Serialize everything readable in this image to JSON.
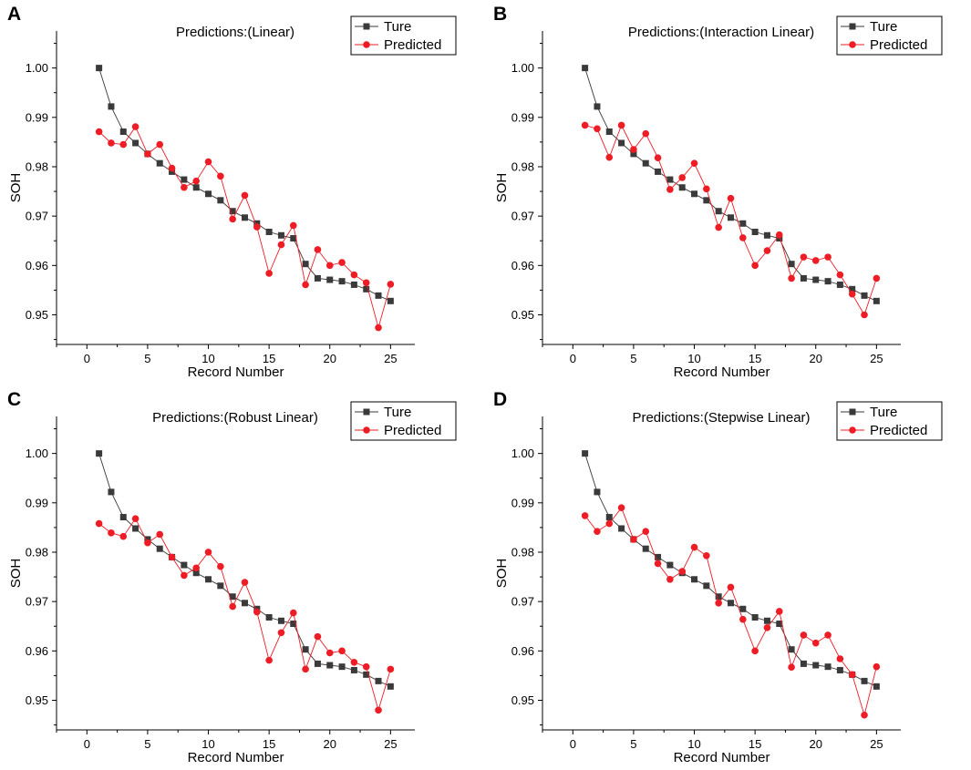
{
  "chart_data": [
    {
      "panel": "A",
      "type": "line",
      "title": "Predictions:(Linear)",
      "xlabel": "Record Number",
      "ylabel": "SOH",
      "xlim": [
        -2.5,
        27
      ],
      "ylim": [
        0.944,
        1.0075
      ],
      "xticks": [
        0,
        5,
        10,
        15,
        20,
        25
      ],
      "yticks": [
        0.95,
        0.96,
        0.97,
        0.98,
        0.99,
        1.0
      ],
      "ytick_labels": [
        "0.95",
        "0.96",
        "0.97",
        "0.98",
        "0.99",
        "1.00"
      ],
      "legend_position": "top-right",
      "x": [
        1,
        2,
        3,
        4,
        5,
        6,
        7,
        8,
        9,
        10,
        11,
        12,
        13,
        14,
        15,
        16,
        17,
        18,
        19,
        20,
        21,
        22,
        23,
        24,
        25
      ],
      "series": [
        {
          "name": "Ture",
          "color": "#3a3a3a",
          "marker": "square",
          "values": [
            1.0,
            0.9922,
            0.9871,
            0.9848,
            0.9826,
            0.9807,
            0.979,
            0.9774,
            0.9758,
            0.9745,
            0.9732,
            0.971,
            0.9697,
            0.9685,
            0.9668,
            0.9661,
            0.9655,
            0.9603,
            0.9574,
            0.9571,
            0.9568,
            0.9561,
            0.9552,
            0.9539,
            0.9528
          ]
        },
        {
          "name": "Predicted",
          "color": "#ee1c25",
          "marker": "circle",
          "values": [
            0.9871,
            0.9848,
            0.9845,
            0.9881,
            0.9826,
            0.9845,
            0.9797,
            0.9758,
            0.9771,
            0.981,
            0.9781,
            0.9694,
            0.9742,
            0.9678,
            0.9584,
            0.9642,
            0.9681,
            0.9561,
            0.9632,
            0.96,
            0.9606,
            0.9581,
            0.9565,
            0.9474,
            0.9562
          ]
        }
      ]
    },
    {
      "panel": "B",
      "type": "line",
      "title": "Predictions:(Interaction Linear)",
      "xlabel": "Record Number",
      "ylabel": "SOH",
      "xlim": [
        -2.5,
        27
      ],
      "ylim": [
        0.944,
        1.0075
      ],
      "xticks": [
        0,
        5,
        10,
        15,
        20,
        25
      ],
      "yticks": [
        0.95,
        0.96,
        0.97,
        0.98,
        0.99,
        1.0
      ],
      "ytick_labels": [
        "0.95",
        "0.96",
        "0.97",
        "0.98",
        "0.99",
        "1.00"
      ],
      "legend_position": "top-right",
      "x": [
        1,
        2,
        3,
        4,
        5,
        6,
        7,
        8,
        9,
        10,
        11,
        12,
        13,
        14,
        15,
        16,
        17,
        18,
        19,
        20,
        21,
        22,
        23,
        24,
        25
      ],
      "series": [
        {
          "name": "Ture",
          "color": "#3a3a3a",
          "marker": "square",
          "values": [
            1.0,
            0.9922,
            0.9871,
            0.9848,
            0.9826,
            0.9807,
            0.979,
            0.9774,
            0.9758,
            0.9745,
            0.9732,
            0.971,
            0.9697,
            0.9685,
            0.9668,
            0.9661,
            0.9655,
            0.9603,
            0.9574,
            0.9571,
            0.9568,
            0.9561,
            0.9552,
            0.9539,
            0.9528
          ]
        },
        {
          "name": "Predicted",
          "color": "#ee1c25",
          "marker": "circle",
          "values": [
            0.9884,
            0.9877,
            0.9819,
            0.9884,
            0.9835,
            0.9867,
            0.9818,
            0.9754,
            0.9778,
            0.9807,
            0.9755,
            0.9677,
            0.9736,
            0.9656,
            0.96,
            0.963,
            0.9662,
            0.9574,
            0.9617,
            0.961,
            0.9617,
            0.9581,
            0.9542,
            0.95,
            0.9574
          ]
        }
      ]
    },
    {
      "panel": "C",
      "type": "line",
      "title": "Predictions:(Robust Linear)",
      "xlabel": "Record Number",
      "ylabel": "SOH",
      "xlim": [
        -2.5,
        27
      ],
      "ylim": [
        0.944,
        1.0075
      ],
      "xticks": [
        0,
        5,
        10,
        15,
        20,
        25
      ],
      "yticks": [
        0.95,
        0.96,
        0.97,
        0.98,
        0.99,
        1.0
      ],
      "ytick_labels": [
        "0.95",
        "0.96",
        "0.97",
        "0.98",
        "0.99",
        "1.00"
      ],
      "legend_position": "top-right",
      "x": [
        1,
        2,
        3,
        4,
        5,
        6,
        7,
        8,
        9,
        10,
        11,
        12,
        13,
        14,
        15,
        16,
        17,
        18,
        19,
        20,
        21,
        22,
        23,
        24,
        25
      ],
      "series": [
        {
          "name": "Ture",
          "color": "#3a3a3a",
          "marker": "square",
          "values": [
            1.0,
            0.9922,
            0.9871,
            0.9848,
            0.9826,
            0.9807,
            0.979,
            0.9774,
            0.9758,
            0.9745,
            0.9732,
            0.971,
            0.9697,
            0.9685,
            0.9668,
            0.9661,
            0.9655,
            0.9603,
            0.9574,
            0.9571,
            0.9568,
            0.9561,
            0.9552,
            0.9539,
            0.9528
          ]
        },
        {
          "name": "Predicted",
          "color": "#ee1c25",
          "marker": "circle",
          "values": [
            0.9858,
            0.9839,
            0.9832,
            0.9868,
            0.9819,
            0.9836,
            0.979,
            0.9753,
            0.9768,
            0.98,
            0.9771,
            0.969,
            0.9739,
            0.9679,
            0.9581,
            0.9637,
            0.9677,
            0.9563,
            0.9629,
            0.9596,
            0.96,
            0.9577,
            0.9568,
            0.948,
            0.9563
          ]
        }
      ]
    },
    {
      "panel": "D",
      "type": "line",
      "title": "Predictions:(Stepwise Linear)",
      "xlabel": "Record Number",
      "ylabel": "SOH",
      "xlim": [
        -2.5,
        27
      ],
      "ylim": [
        0.944,
        1.0075
      ],
      "xticks": [
        0,
        5,
        10,
        15,
        20,
        25
      ],
      "yticks": [
        0.95,
        0.96,
        0.97,
        0.98,
        0.99,
        1.0
      ],
      "ytick_labels": [
        "0.95",
        "0.96",
        "0.97",
        "0.98",
        "0.99",
        "1.00"
      ],
      "legend_position": "top-right",
      "x": [
        1,
        2,
        3,
        4,
        5,
        6,
        7,
        8,
        9,
        10,
        11,
        12,
        13,
        14,
        15,
        16,
        17,
        18,
        19,
        20,
        21,
        22,
        23,
        24,
        25
      ],
      "series": [
        {
          "name": "Ture",
          "color": "#3a3a3a",
          "marker": "square",
          "values": [
            1.0,
            0.9922,
            0.9871,
            0.9848,
            0.9826,
            0.9807,
            0.979,
            0.9774,
            0.9758,
            0.9745,
            0.9732,
            0.971,
            0.9697,
            0.9685,
            0.9668,
            0.9661,
            0.9655,
            0.9603,
            0.9574,
            0.9571,
            0.9568,
            0.9561,
            0.9552,
            0.9539,
            0.9528
          ]
        },
        {
          "name": "Predicted",
          "color": "#ee1c25",
          "marker": "circle",
          "values": [
            0.9874,
            0.9842,
            0.9858,
            0.989,
            0.9826,
            0.9842,
            0.9777,
            0.9745,
            0.9761,
            0.981,
            0.9793,
            0.9697,
            0.9729,
            0.9664,
            0.96,
            0.9647,
            0.968,
            0.9567,
            0.9632,
            0.9616,
            0.9632,
            0.9584,
            0.9552,
            0.947,
            0.9568
          ]
        }
      ]
    }
  ]
}
